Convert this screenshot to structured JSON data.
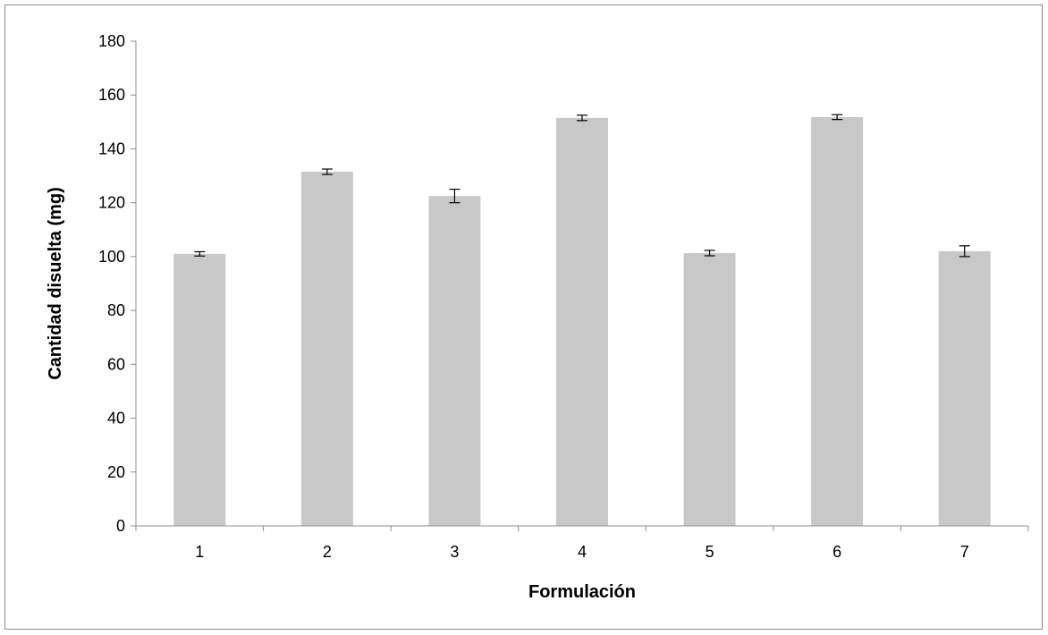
{
  "chart_data": {
    "type": "bar",
    "title": "",
    "xlabel": "Formulación",
    "ylabel": "Cantidad disuelta (mg)",
    "categories": [
      "1",
      "2",
      "3",
      "4",
      "5",
      "6",
      "7"
    ],
    "series": [
      {
        "values": [
          101,
          131.5,
          122.5,
          151.5,
          101.3,
          151.8,
          102
        ],
        "errors": [
          0.8,
          1.0,
          2.5,
          1.0,
          1.0,
          0.9,
          2.0
        ],
        "color": "#c8c8c8"
      }
    ],
    "ylim": [
      0,
      180
    ],
    "yticks": [
      0,
      20,
      40,
      60,
      80,
      100,
      120,
      140,
      160,
      180
    ],
    "grid": false,
    "legend": "none"
  }
}
